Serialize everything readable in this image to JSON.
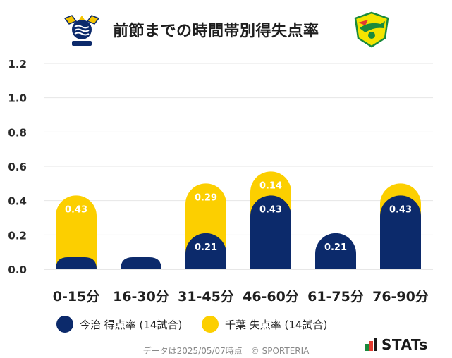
{
  "header": {
    "title": "前節までの時間帯別得失点率",
    "home_logo_icon": "imabari-crest-icon",
    "away_logo_icon": "chiba-crest-icon"
  },
  "chart_data": {
    "type": "bar",
    "stacked": true,
    "title": "前節までの時間帯別得失点率",
    "categories": [
      "0-15分",
      "16-30分",
      "31-45分",
      "46-60分",
      "61-75分",
      "76-90分"
    ],
    "series": [
      {
        "name": "今治 得点率 (14試合)",
        "color": "#0c2a6b",
        "values": [
          0.0,
          0.0,
          0.21,
          0.43,
          0.21,
          0.43
        ],
        "labels": [
          "",
          "",
          "0.21",
          "0.43",
          "0.21",
          "0.43"
        ]
      },
      {
        "name": "千葉 失点率 (14試合)",
        "color": "#fccf00",
        "values": [
          0.43,
          0.0,
          0.29,
          0.14,
          0.0,
          0.07
        ],
        "labels": [
          "0.43",
          "",
          "0.29",
          "0.14",
          "",
          ""
        ]
      }
    ],
    "y_ticks": [
      "0.0",
      "0.2",
      "0.4",
      "0.6",
      "0.8",
      "1.0",
      "1.2"
    ],
    "ylim": [
      0,
      1.2
    ],
    "grid": true,
    "legend_position": "bottom"
  },
  "legend": {
    "items": [
      {
        "label": "今治 得点率 (14試合)",
        "color": "#0c2a6b"
      },
      {
        "label": "千葉 失点率 (14試合)",
        "color": "#fccf00"
      }
    ]
  },
  "footer": {
    "note": "データは2025/05/07時点　© SPORTERIA",
    "brand": "STATs"
  }
}
